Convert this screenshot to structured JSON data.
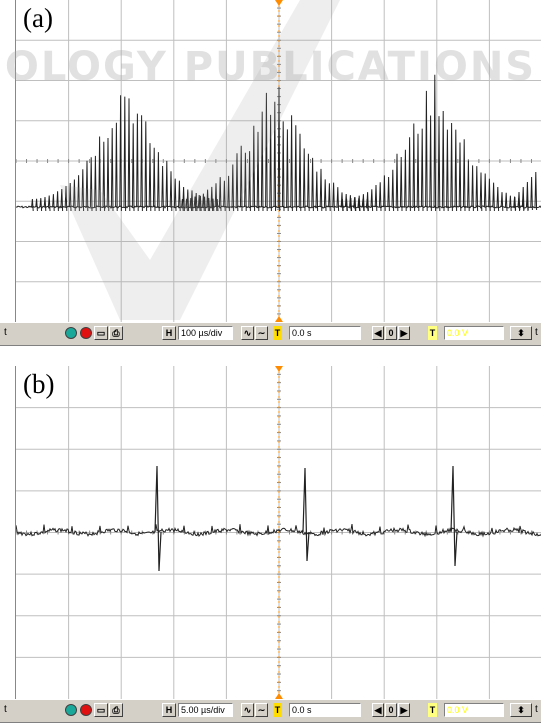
{
  "watermark": {
    "text": "OLOGY PUBLICATIONS"
  },
  "panels": [
    {
      "label": "(a)",
      "toolbar": {
        "ch_marker": "t",
        "h_button": "H",
        "timebase": "100 µs/div",
        "trigger_time": "0.0 s",
        "trigger_marker": "T",
        "trigger_level": "0.0 V",
        "position_value": "0"
      }
    },
    {
      "label": "(b)",
      "toolbar": {
        "ch_marker": "t",
        "h_button": "H",
        "timebase": "5.00 µs/div",
        "trigger_time": "0.0 s",
        "trigger_marker": "T",
        "trigger_level": "0.0 V",
        "position_value": "0"
      }
    }
  ],
  "colors": {
    "grid": "#bfbfbf",
    "trace": "#222222",
    "trigger": "#ff8c00",
    "run_green": "#1aa89a",
    "stop_red": "#e01010"
  }
}
